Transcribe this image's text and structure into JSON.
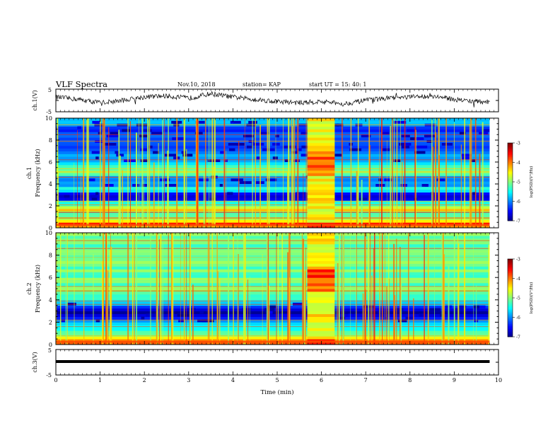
{
  "header": {
    "title": "VLF Spectra",
    "date": "Nov.10, 2018",
    "station": "station= KAP",
    "start_ut": "start  UT =   15: 40: 1"
  },
  "chart_data": [
    {
      "type": "line",
      "panel": "ch1-waveform",
      "ylabel": "ch.1(V)",
      "ylim": [
        -5,
        5
      ],
      "y_ticks": [
        "5",
        "-5"
      ],
      "x": [
        0.0,
        0.5,
        1.0,
        1.5,
        2.0,
        2.5,
        3.0,
        3.5,
        4.0,
        4.5,
        5.0,
        5.5,
        6.0,
        6.5,
        7.0,
        7.5,
        8.0,
        8.5,
        9.0,
        9.5,
        9.8
      ],
      "values": [
        1.5,
        0.5,
        -1.0,
        0.0,
        1.5,
        2.0,
        1.0,
        3.0,
        1.5,
        0.5,
        -0.5,
        -1.0,
        -0.5,
        -1.5,
        0.0,
        1.0,
        1.5,
        2.0,
        0.5,
        -0.5,
        -0.5
      ],
      "xlim": [
        0,
        10
      ]
    },
    {
      "type": "heatmap",
      "panel": "ch1-spectrogram",
      "ylabel": "ch.1\nFrequency (kHz)",
      "ylim": [
        0,
        10
      ],
      "y_ticks": [
        "0",
        "2",
        "4",
        "6",
        "8",
        "10"
      ],
      "xlim": [
        0,
        10
      ],
      "data_end_min": 9.8,
      "colorbar": {
        "label": "log(PSD)(V²/Hz)",
        "range": [
          -7,
          -3
        ],
        "ticks": [
          "-3",
          "-4",
          "-5",
          "-6",
          "-7"
        ]
      }
    },
    {
      "type": "heatmap",
      "panel": "ch2-spectrogram",
      "ylabel": "ch.2\nFrequency (kHz)",
      "ylim": [
        0,
        10
      ],
      "y_ticks": [
        "0",
        "2",
        "4",
        "6",
        "8",
        "10"
      ],
      "xlim": [
        0,
        10
      ],
      "data_end_min": 9.8,
      "colorbar": {
        "label": "log(PSD)(V²/Hz)",
        "range": [
          -7,
          -3
        ],
        "ticks": [
          "-3",
          "-4",
          "-5",
          "-6",
          "-7"
        ]
      }
    },
    {
      "type": "line",
      "panel": "ch3-waveform",
      "ylabel": "ch.3(V)",
      "ylim": [
        -5,
        5
      ],
      "y_ticks": [
        "5",
        "-5"
      ],
      "x": [
        0,
        9.8
      ],
      "values": [
        0,
        0
      ],
      "xlim": [
        0,
        10
      ],
      "xlabel": "Time (min)",
      "x_ticks": [
        "0",
        "1",
        "2",
        "3",
        "4",
        "5",
        "6",
        "7",
        "8",
        "9",
        "10"
      ]
    }
  ]
}
